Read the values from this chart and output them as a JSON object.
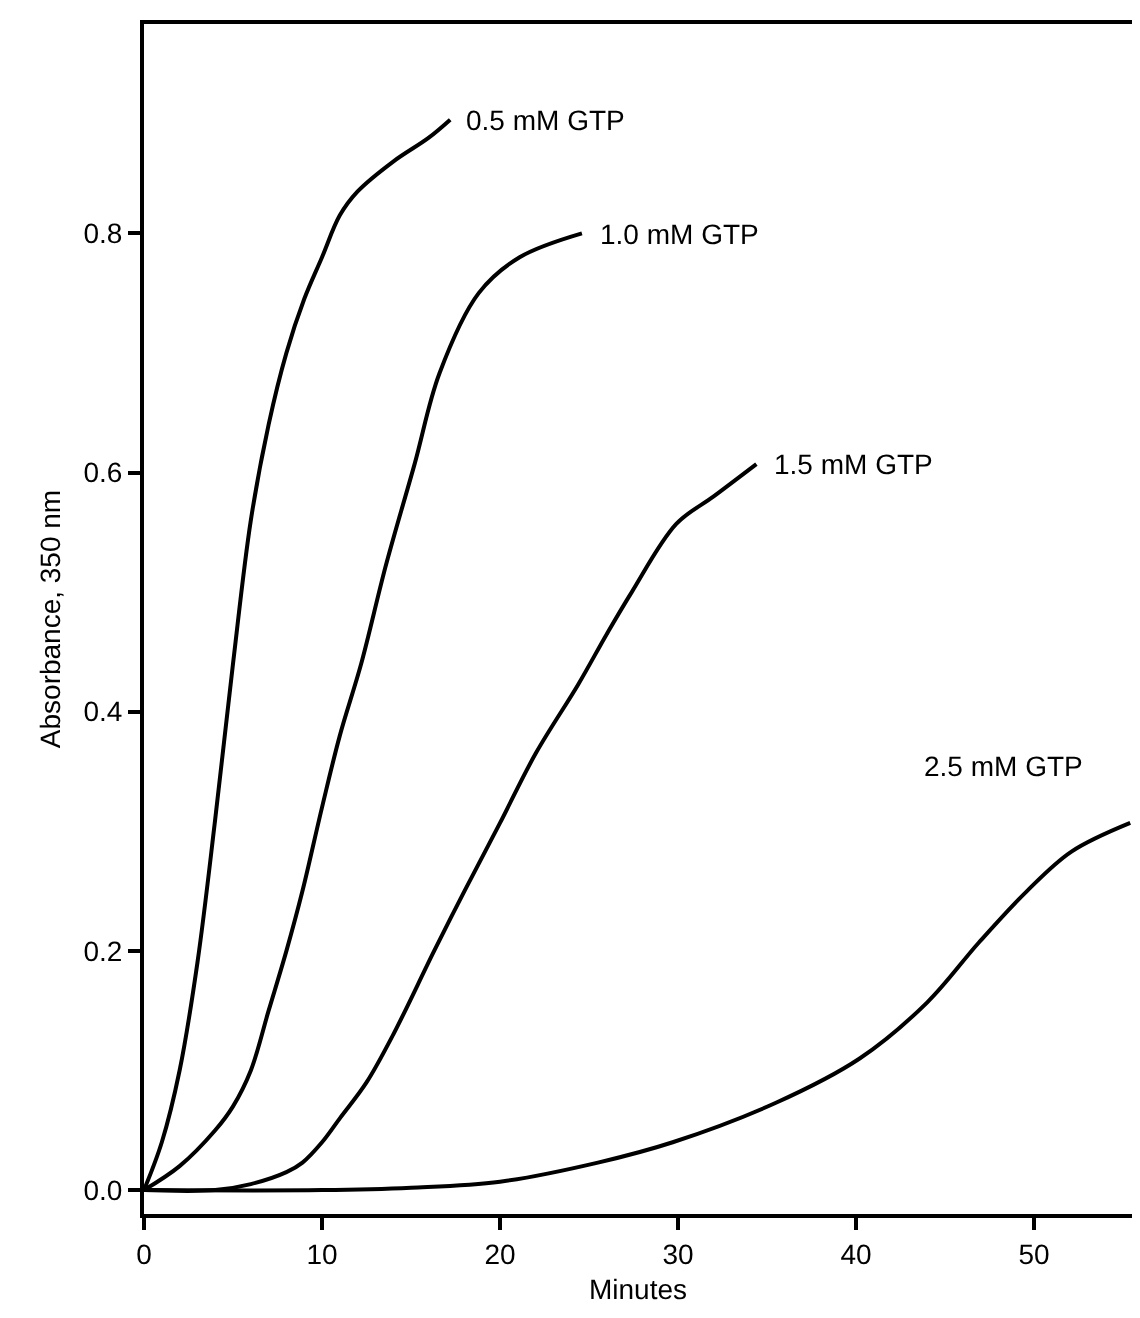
{
  "chart_data": {
    "type": "line",
    "xlabel": "Minutes",
    "ylabel": "Absorbance, 350 nm",
    "xlim": [
      0,
      55.5
    ],
    "xticks": [
      0,
      10,
      20,
      30,
      40,
      50
    ],
    "ylim": [
      -0.02,
      0.975
    ],
    "yticks": [
      {
        "value": 0,
        "label": "0.0"
      },
      {
        "value": 0.2,
        "label": "0.2"
      },
      {
        "value": 0.4,
        "label": "0.4"
      },
      {
        "value": 0.6,
        "label": "0.6"
      },
      {
        "value": 0.8,
        "label": "0.8"
      }
    ],
    "marker": "none",
    "line_style": "solid",
    "series": [
      {
        "color": "#000000",
        "x": [
          0,
          1,
          2,
          3,
          4,
          5,
          6,
          7,
          8,
          9,
          10,
          11,
          12,
          14,
          16,
          17.2
        ],
        "values": [
          0,
          0.04,
          0.1,
          0.19,
          0.31,
          0.44,
          0.56,
          0.64,
          0.7,
          0.745,
          0.78,
          0.815,
          0.835,
          0.86,
          0.88,
          0.895
        ]
      },
      {
        "color": "#000000",
        "x": [
          0,
          2,
          4,
          5,
          6,
          7,
          8,
          8.9,
          10,
          11,
          12.2,
          13.6,
          15.2,
          16.6,
          18.8,
          21.1,
          24.6
        ],
        "values": [
          0,
          0.02,
          0.05,
          0.07,
          0.1,
          0.15,
          0.2,
          0.25,
          0.32,
          0.38,
          0.44,
          0.523,
          0.607,
          0.683,
          0.75,
          0.78,
          0.8
        ]
      },
      {
        "color": "#000000",
        "x": [
          0,
          4,
          6,
          8,
          8.9,
          10,
          11,
          12.5,
          14,
          16.3,
          18,
          20,
          22,
          24.4,
          26,
          27.4,
          29.9,
          32,
          34.4
        ],
        "values": [
          0,
          0,
          0.005,
          0.015,
          0.023,
          0.04,
          0.06,
          0.09,
          0.13,
          0.2,
          0.25,
          0.307,
          0.365,
          0.423,
          0.465,
          0.5,
          0.557,
          0.58,
          0.607
        ]
      },
      {
        "color": "#000000",
        "x": [
          0,
          10,
          15,
          20,
          25.5,
          29.7,
          35.5,
          40.2,
          44,
          46.9,
          49.6,
          52.1,
          55.4
        ],
        "values": [
          0,
          0,
          0.002,
          0.007,
          0.023,
          0.04,
          0.073,
          0.11,
          0.157,
          0.207,
          0.25,
          0.283,
          0.307
        ]
      }
    ],
    "annotations": [
      {
        "text": "0.5 mM GTP",
        "x": 17.5,
        "y": 0.895
      },
      {
        "text": "1.0 mM GTP",
        "x": 25,
        "y": 0.8
      },
      {
        "text": "1.5 mM GTP",
        "x": 34.8,
        "y": 0.607
      },
      "2.5 mM GTP"
    ]
  }
}
